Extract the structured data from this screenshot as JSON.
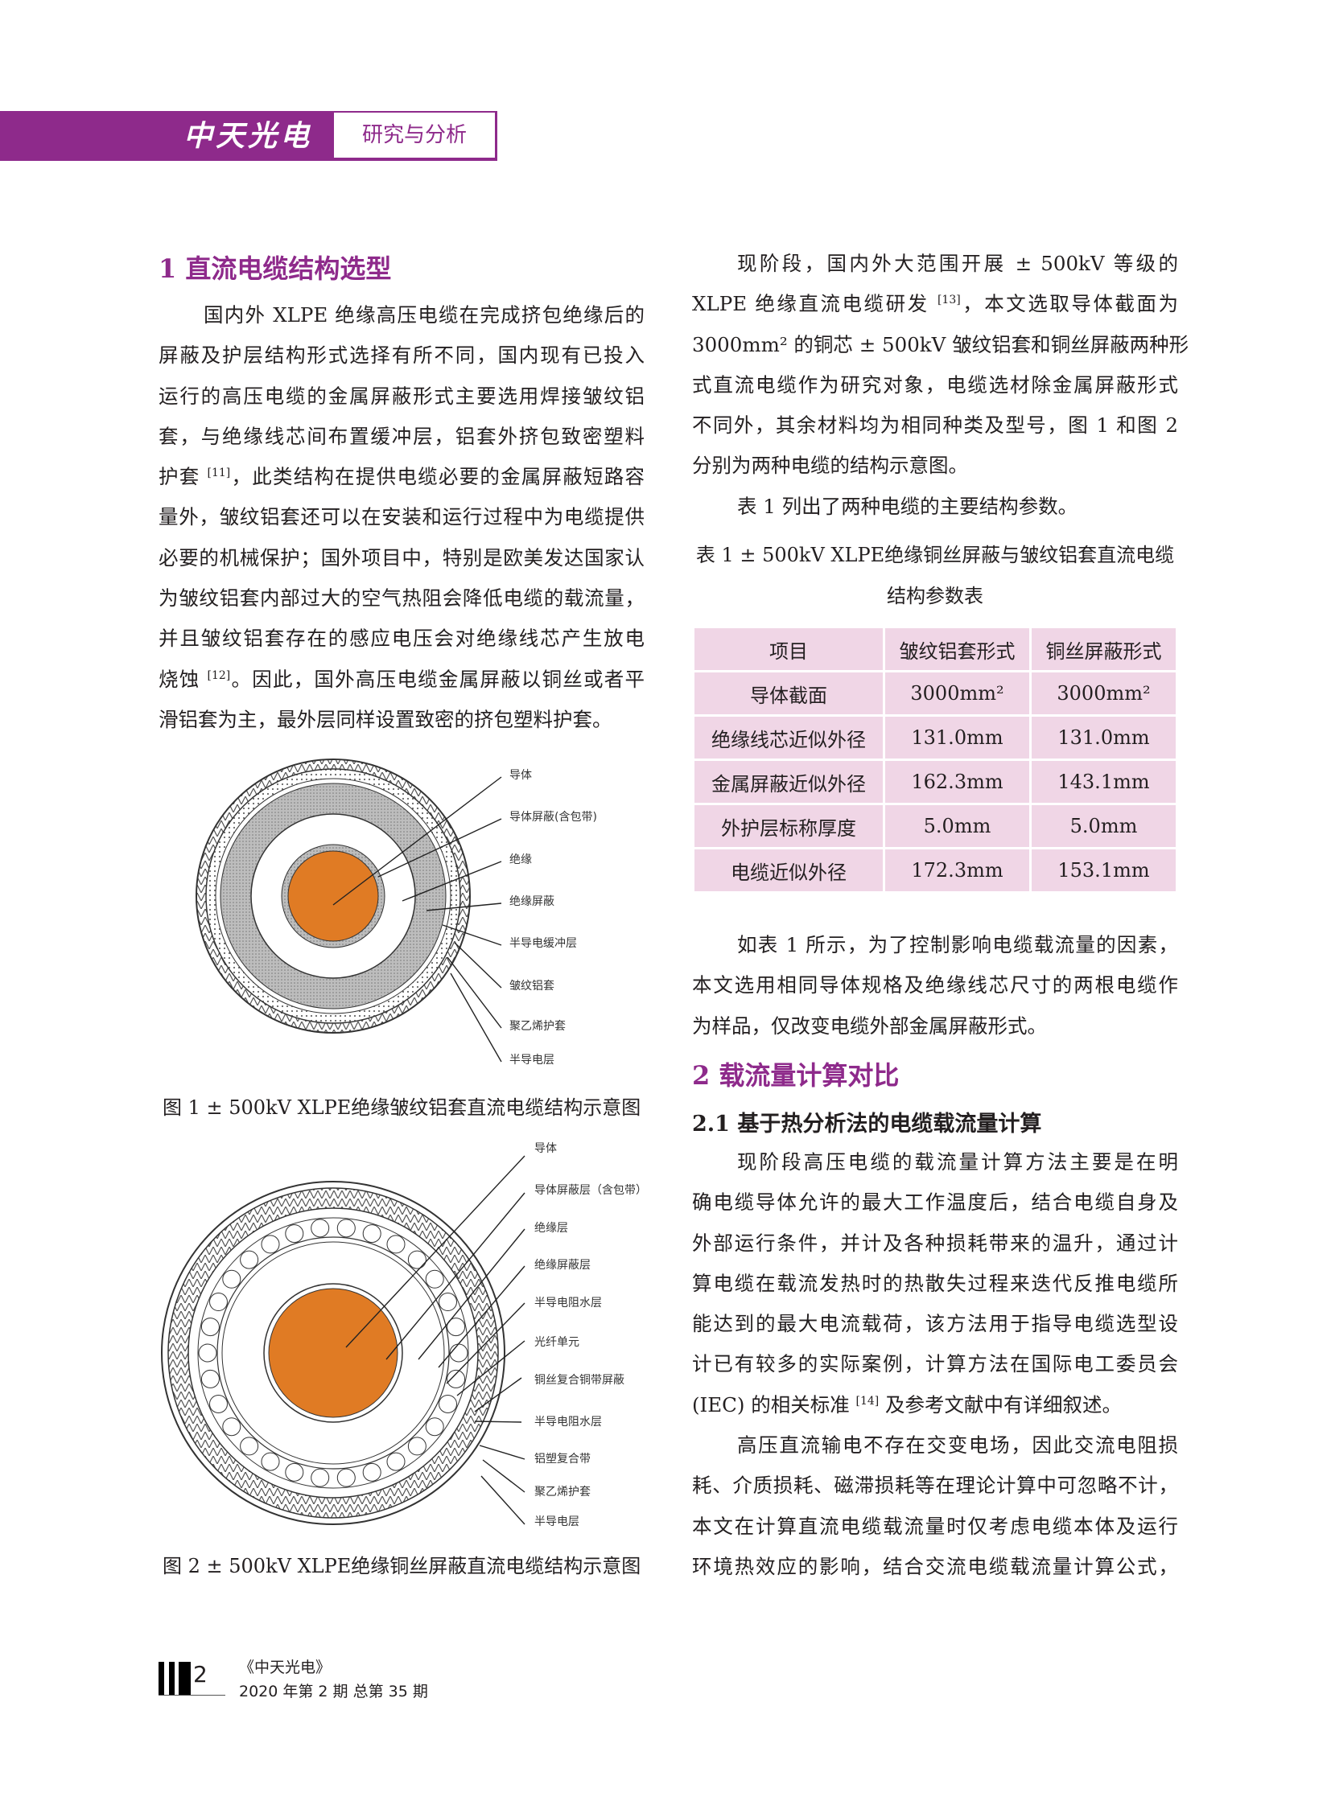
{
  "header": {
    "logo": "中天光电",
    "section": "研究与分析",
    "accent": "#8e2a8b"
  },
  "left": {
    "heading": "1 直流电缆结构选型",
    "paragraphs": [
      [
        "国内外 XLPE 绝缘高压电缆在完成挤包绝缘后的",
        "屏蔽及护层结构形式选择有所不同，国内现有已投入",
        "运行的高压电缆的金属屏蔽形式主要选用焊接皱纹铝",
        "套，与绝缘线芯间布置缓冲层，铝套外挤包致密塑料",
        "护套 [11]，此类结构在提供电缆必要的金属屏蔽短路容",
        "量外，皱纹铝套还可以在安装和运行过程中为电缆提供",
        "必要的机械保护；国外项目中，特别是欧美发达国家认",
        "为皱纹铝套内部过大的空气热阻会降低电缆的载流量，",
        "并且皱纹铝套存在的感应电压会对绝缘线芯产生放电",
        "烧蚀 [12]。因此，国外高压电缆金属屏蔽以铜丝或者平",
        "滑铝套为主，最外层同样设置致密的挤包塑料护套。"
      ]
    ],
    "figure1": {
      "labels": [
        "导体",
        "导体屏蔽(含包带)",
        "绝缘",
        "绝缘屏蔽",
        "半导电缓冲层",
        "皱纹铝套",
        "聚乙烯护套",
        "半导电层"
      ],
      "caption": "图 1  ± 500kV XLPE绝缘皱纹铝套直流电缆结构示意图"
    },
    "figure2": {
      "labels": [
        "导体",
        "导体屏蔽层（含包带）",
        "绝缘层",
        "绝缘屏蔽层",
        "半导电阻水层",
        "光纤单元",
        "铜丝复合铜带屏蔽",
        "半导电阻水层",
        "铝塑复合带",
        "聚乙烯护套",
        "半导电层"
      ],
      "caption": "图 2  ± 500kV XLPE绝缘铜丝屏蔽直流电缆结构示意图"
    }
  },
  "right": {
    "paragraphs1": [
      [
        "现阶段，国内外大范围开展 ± 500kV 等级的",
        "XLPE 绝缘直流电缆研发 [13]，本文选取导体截面为",
        "3000mm² 的铜芯 ± 500kV 皱纹铝套和铜丝屏蔽两种形",
        "式直流电缆作为研究对象，电缆选材除金属屏蔽形式",
        "不同外，其余材料均为相同种类及型号，图 1 和图 2",
        "分别为两种电缆的结构示意图。"
      ],
      [
        "表 1 列出了两种电缆的主要结构参数。"
      ]
    ],
    "table_caption": [
      "表 1  ± 500kV XLPE绝缘铜丝屏蔽与皱纹铝套直流电缆",
      "结构参数表"
    ],
    "table": {
      "headers": [
        "项目",
        "皱纹铝套形式",
        "铜丝屏蔽形式"
      ],
      "rows": [
        [
          "导体截面",
          "3000mm²",
          "3000mm²"
        ],
        [
          "绝缘线芯近似外径",
          "131.0mm",
          "131.0mm"
        ],
        [
          "金属屏蔽近似外径",
          "162.3mm",
          "143.1mm"
        ],
        [
          "外护层标称厚度",
          "5.0mm",
          "5.0mm"
        ],
        [
          "电缆近似外径",
          "172.3mm",
          "153.1mm"
        ]
      ],
      "fill": "#f0d6e6"
    },
    "paragraphs2": [
      [
        "如表 1 所示，为了控制影响电缆载流量的因素，",
        "本文选用相同导体规格及绝缘线芯尺寸的两根电缆作",
        "为样品，仅改变电缆外部金属屏蔽形式。"
      ]
    ],
    "heading2": "2  载流量计算对比",
    "heading21": "2.1  基于热分析法的电缆载流量计算",
    "paragraphs3": [
      [
        "现阶段高压电缆的载流量计算方法主要是在明",
        "确电缆导体允许的最大工作温度后，结合电缆自身及",
        "外部运行条件，并计及各种损耗带来的温升，通过计",
        "算电缆在载流发热时的热散失过程来迭代反推电缆所",
        "能达到的最大电流载荷，该方法用于指导电缆选型设",
        "计已有较多的实际案例，计算方法在国际电工委员会",
        "(IEC) 的相关标准 [14] 及参考文献中有详细叙述。"
      ],
      [
        "高压直流输电不存在交变电场，因此交流电阻损",
        "耗、介质损耗、磁滞损耗等在理论计算中可忽略不计，",
        "本文在计算直流电缆载流量时仅考虑电缆本体及运行",
        "环境热效应的影响，结合交流电缆载流量计算公式，"
      ]
    ]
  },
  "footer": {
    "page": "2",
    "journal": "《中天光电》",
    "issue": "2020 年第 2 期 总第 35 期"
  }
}
